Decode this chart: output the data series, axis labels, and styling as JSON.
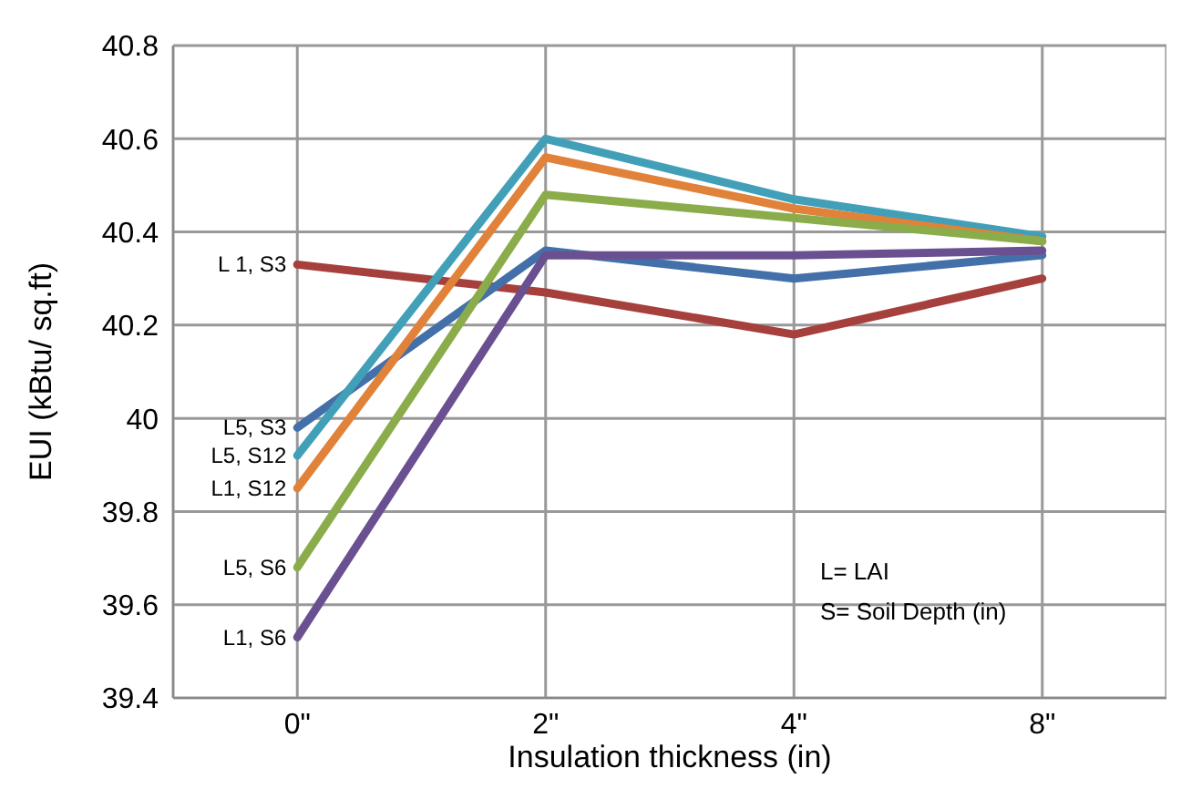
{
  "chart_data": {
    "type": "line",
    "xlabel": "Insulation thickness (in)",
    "ylabel": "EUI (kBtu/ sq.ft)",
    "categories": [
      "0\"",
      "2\"",
      "4\"",
      "8\""
    ],
    "series": [
      {
        "name": "L 1, S3",
        "color": "#a5403d",
        "values": [
          40.33,
          40.27,
          40.18,
          40.3
        ]
      },
      {
        "name": "L5, S3",
        "color": "#4470aa",
        "values": [
          39.98,
          40.36,
          40.3,
          40.35
        ]
      },
      {
        "name": "L5, S12",
        "color": "#41a0b8",
        "values": [
          39.92,
          40.6,
          40.47,
          40.39
        ]
      },
      {
        "name": "L1, S12",
        "color": "#e0823a",
        "values": [
          39.85,
          40.56,
          40.45,
          40.38
        ]
      },
      {
        "name": "L5, S6",
        "color": "#8aac4a",
        "values": [
          39.68,
          40.48,
          40.43,
          40.38
        ]
      },
      {
        "name": "L1, S6",
        "color": "#6a5090",
        "values": [
          39.53,
          40.35,
          40.35,
          40.36
        ]
      }
    ],
    "ylim": [
      39.4,
      40.8
    ],
    "yticks": [
      39.4,
      39.6,
      39.8,
      40,
      40.2,
      40.4,
      40.6,
      40.8
    ],
    "grid": true,
    "legend": false,
    "marker": "none",
    "line_style": "solid",
    "annotations": [
      "L= LAI",
      "S= Soil Depth (in)"
    ]
  }
}
